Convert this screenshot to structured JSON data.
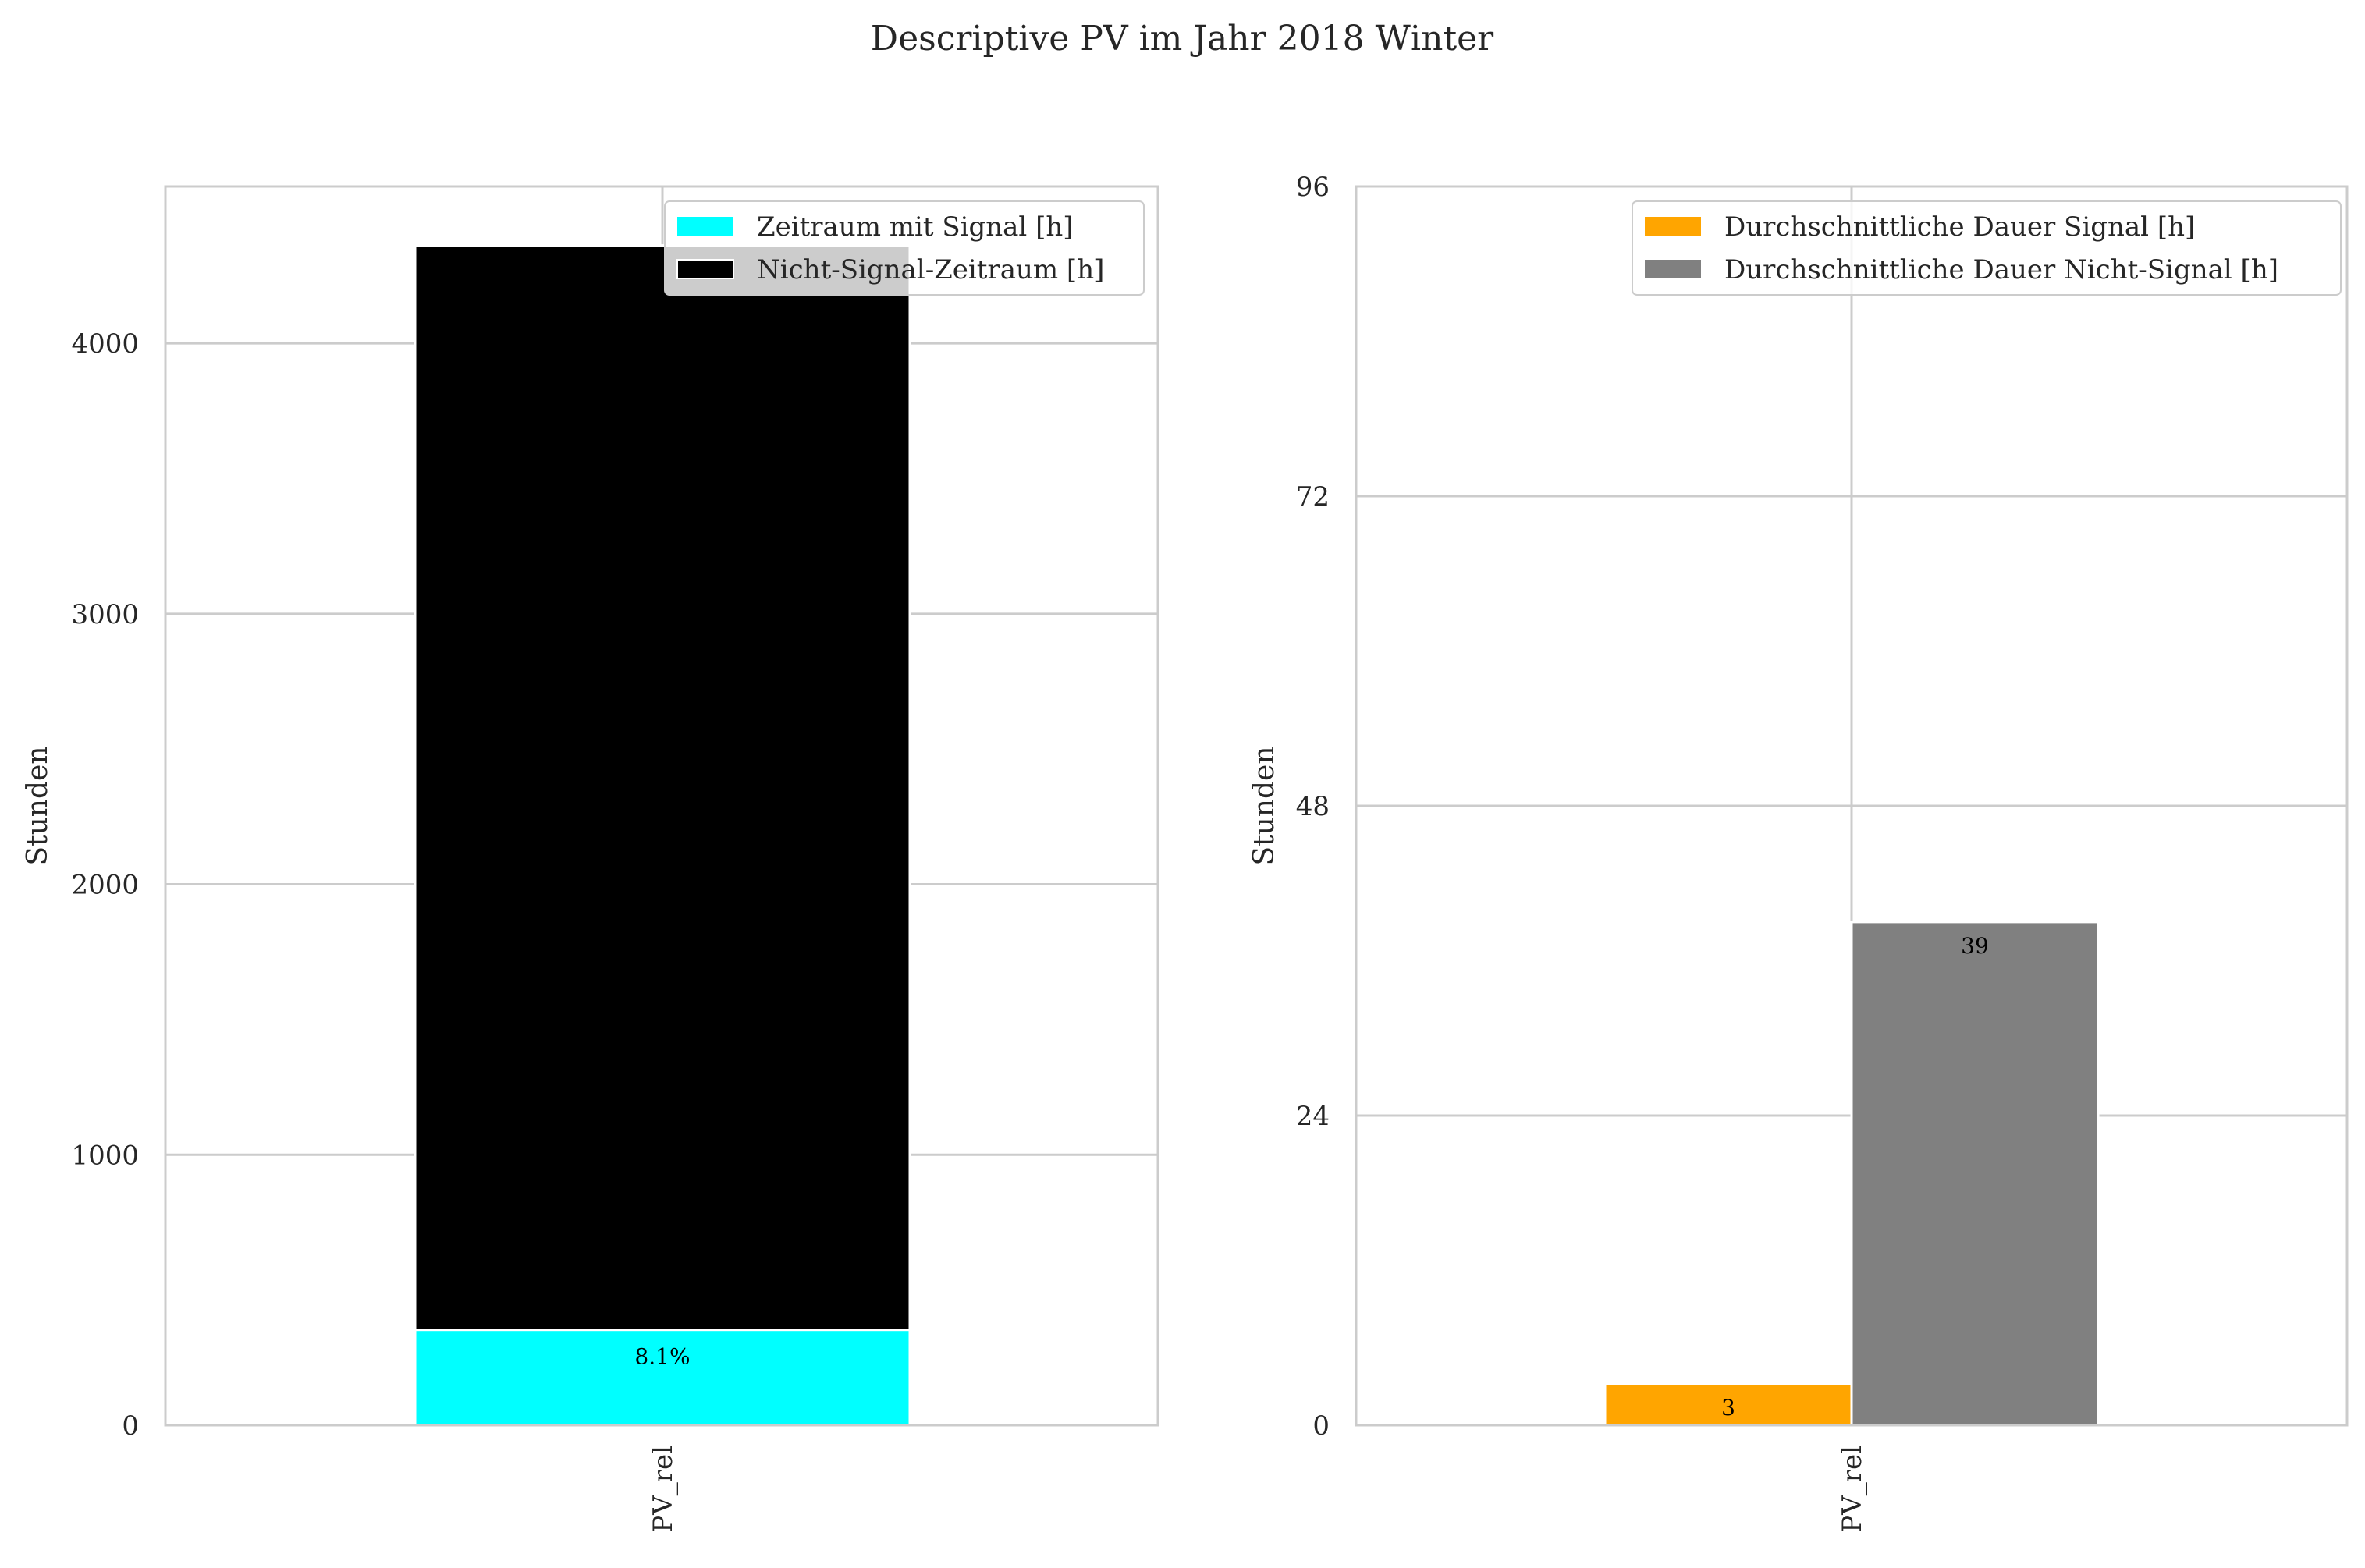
{
  "suptitle": "Descriptive PV im Jahr 2018 Winter",
  "chart_data": [
    {
      "type": "bar",
      "stacked": true,
      "categories": [
        "PV_rel"
      ],
      "series": [
        {
          "name": "Zeitraum mit Signal [h]",
          "values": [
            353
          ],
          "color": "#00ffff"
        },
        {
          "name": "Nicht-Signal-Zeitraum [h]",
          "values": [
            4009
          ],
          "color": "#000000"
        }
      ],
      "bar_labels": [
        "8.1%"
      ],
      "ylabel": "Stunden",
      "ylim": [
        0,
        4580
      ],
      "yticks": [
        0,
        1000,
        2000,
        3000,
        4000
      ],
      "ytick_labels": [
        "0",
        "1000",
        "2000",
        "3000",
        "4000"
      ],
      "xtick_labels": [
        "PV_rel"
      ],
      "grid": true,
      "legend": "top-right"
    },
    {
      "type": "bar",
      "stacked": false,
      "categories": [
        "PV_rel"
      ],
      "series": [
        {
          "name": "Durchschnittliche Dauer Signal [h]",
          "values": [
            3.2
          ],
          "color": "#ffa500"
        },
        {
          "name": "Durchschnittliche Dauer Nicht-Signal [h]",
          "values": [
            39
          ],
          "color": "#808080"
        }
      ],
      "bar_labels": [
        "3",
        "39"
      ],
      "ylabel": "Stunden",
      "ylim": [
        0,
        96
      ],
      "yticks": [
        0,
        24,
        48,
        72,
        96
      ],
      "ytick_labels": [
        "0",
        "24",
        "48",
        "72",
        "96"
      ],
      "xtick_labels": [
        "PV_rel"
      ],
      "grid": true,
      "legend": "top-right"
    }
  ]
}
